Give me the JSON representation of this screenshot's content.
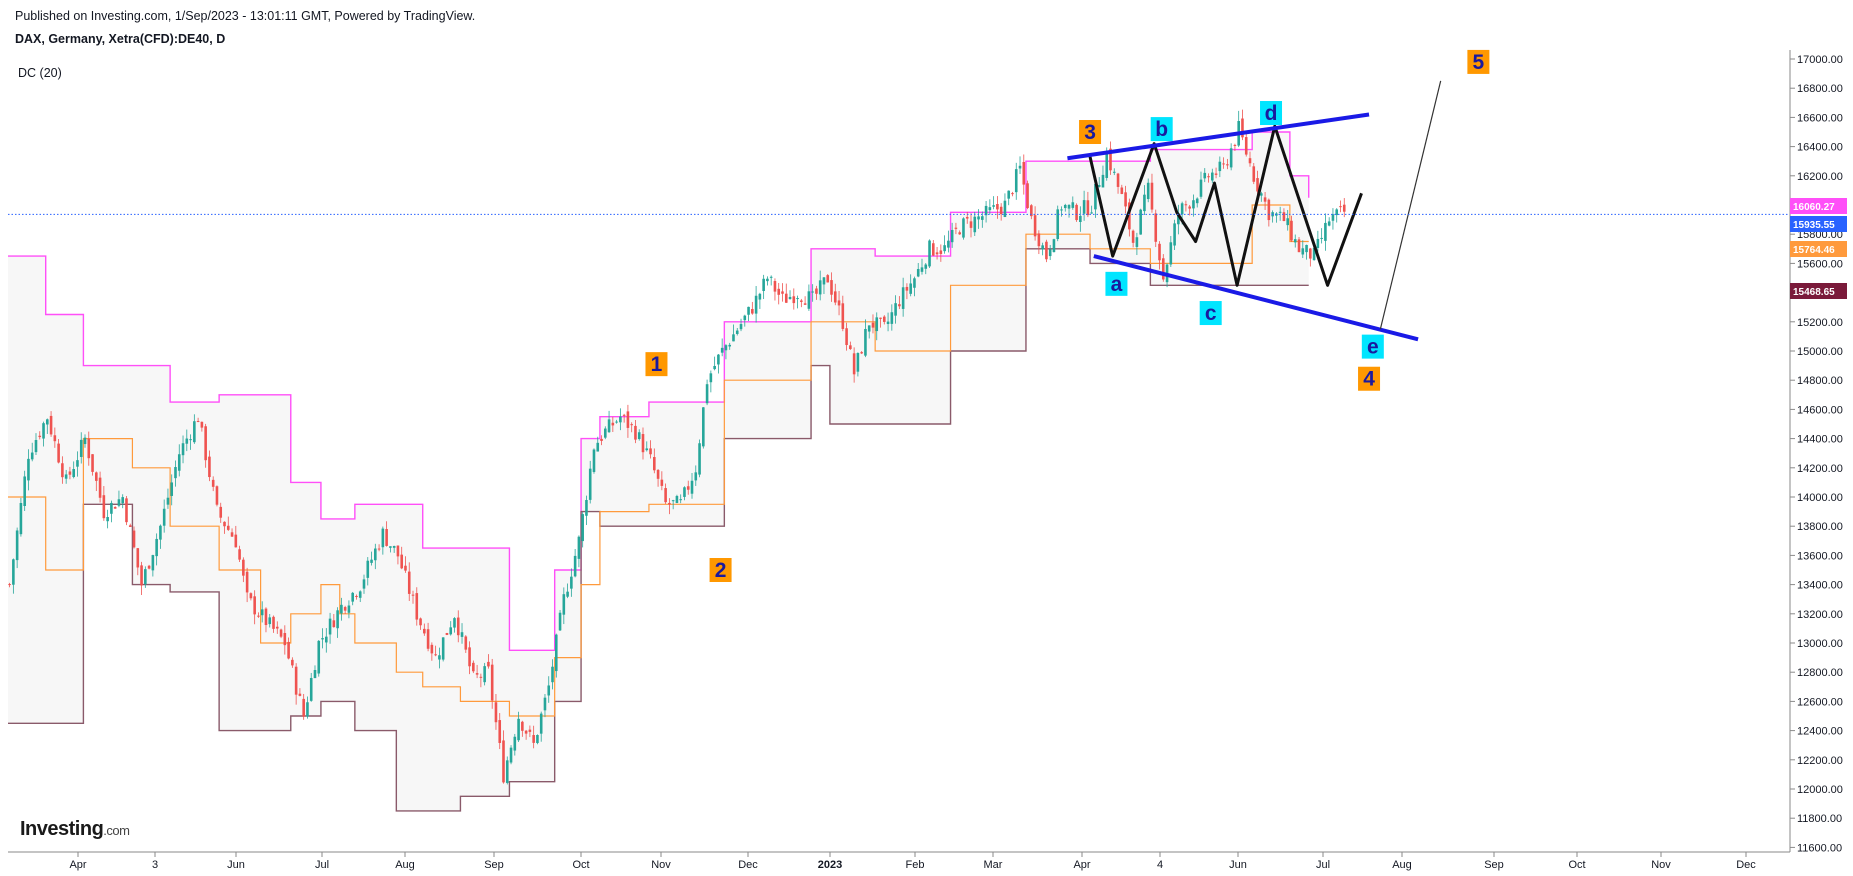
{
  "header": {
    "published": "Published on Investing.com, 1/Sep/2023 - 13:01:11 GMT, Powered by TradingView.",
    "symbol": "DAX, Germany, Xetra(CFD):DE40, D",
    "indicator": "DC (20)"
  },
  "logo": {
    "brand": "Investing",
    "domain": ".com"
  },
  "colors": {
    "candle_up": "#26a69a",
    "candle_down": "#ef5350",
    "upper_band": "#ff4ff8",
    "basis": "#ff9a3c",
    "lower_band": "#8a5a6a",
    "trendline": "#1a1ae6",
    "wave_path": "#111111",
    "label_orange": "#ff9800",
    "label_cyan": "#00e5ff",
    "label_text": "#1a1a9e",
    "current_price_line": "#2962ff"
  },
  "chart_data": {
    "type": "candlestick",
    "title": "DAX, Germany, Xetra(CFD):DE40, D",
    "ylim": [
      11600,
      17100
    ],
    "y_ticks": [
      "17000.00",
      "16800.00",
      "16600.00",
      "16400.00",
      "16200.00",
      "16000.00",
      "15800.00",
      "15600.00",
      "15400.00",
      "15200.00",
      "15000.00",
      "14800.00",
      "14600.00",
      "14400.00",
      "14200.00",
      "14000.00",
      "13800.00",
      "13600.00",
      "13400.00",
      "13200.00",
      "13000.00",
      "12800.00",
      "12600.00",
      "12400.00",
      "12200.00",
      "12000.00",
      "11800.00",
      "11600.00"
    ],
    "x_ticks": [
      "Apr",
      "3",
      "Jun",
      "Jul",
      "Aug",
      "Sep",
      "Oct",
      "Nov",
      "Dec",
      "2023",
      "Feb",
      "Mar",
      "Apr",
      "4",
      "Jun",
      "Jul",
      "Aug",
      "Sep",
      "Oct",
      "Nov",
      "Dec"
    ],
    "price_tags": [
      {
        "label": "16060.27",
        "value": 16060.27,
        "color": "#ff4ff8"
      },
      {
        "label": "15935.55",
        "value": 15935.55,
        "color": "#2962ff"
      },
      {
        "label": "15764.46",
        "value": 15764.46,
        "color": "#ff9a3c"
      },
      {
        "label": "15468.65",
        "value": 15468.65,
        "color": "#7a1a3a"
      }
    ],
    "close_path": [
      [
        0,
        13400
      ],
      [
        5,
        14300
      ],
      [
        10,
        14550
      ],
      [
        15,
        14100
      ],
      [
        20,
        14400
      ],
      [
        25,
        13900
      ],
      [
        30,
        14000
      ],
      [
        35,
        13400
      ],
      [
        40,
        13800
      ],
      [
        45,
        14300
      ],
      [
        50,
        14550
      ],
      [
        55,
        13900
      ],
      [
        60,
        13700
      ],
      [
        63,
        13300
      ],
      [
        68,
        13150
      ],
      [
        73,
        13000
      ],
      [
        78,
        12500
      ],
      [
        82,
        13000
      ],
      [
        88,
        13250
      ],
      [
        93,
        13400
      ],
      [
        99,
        13750
      ],
      [
        103,
        13600
      ],
      [
        108,
        13200
      ],
      [
        113,
        12900
      ],
      [
        118,
        13200
      ],
      [
        123,
        12750
      ],
      [
        127,
        12800
      ],
      [
        131,
        12100
      ],
      [
        135,
        12500
      ],
      [
        139,
        12300
      ],
      [
        143,
        12700
      ],
      [
        147,
        13300
      ],
      [
        151,
        13700
      ],
      [
        155,
        14350
      ],
      [
        158,
        14450
      ],
      [
        162,
        14550
      ],
      [
        166,
        14450
      ],
      [
        170,
        14250
      ],
      [
        174,
        13950
      ],
      [
        178,
        13950
      ],
      [
        182,
        14200
      ],
      [
        185,
        14800
      ],
      [
        189,
        15000
      ],
      [
        193,
        15150
      ],
      [
        197,
        15300
      ],
      [
        201,
        15500
      ],
      [
        205,
        15350
      ],
      [
        209,
        15400
      ],
      [
        213,
        15350
      ],
      [
        217,
        15500
      ],
      [
        221,
        15200
      ],
      [
        224,
        14850
      ],
      [
        228,
        15200
      ],
      [
        232,
        15150
      ],
      [
        236,
        15350
      ],
      [
        240,
        15500
      ],
      [
        244,
        15700
      ],
      [
        248,
        15700
      ],
      [
        252,
        15850
      ],
      [
        256,
        15900
      ],
      [
        260,
        15950
      ],
      [
        264,
        16000
      ],
      [
        268,
        16250
      ],
      [
        271,
        15900
      ],
      [
        275,
        15650
      ],
      [
        279,
        16000
      ],
      [
        283,
        15950
      ],
      [
        287,
        16000
      ],
      [
        291,
        16350
      ],
      [
        295,
        16050
      ],
      [
        298,
        15750
      ],
      [
        302,
        16100
      ],
      [
        306,
        15500
      ],
      [
        310,
        15950
      ],
      [
        314,
        16050
      ],
      [
        318,
        16200
      ],
      [
        322,
        16250
      ],
      [
        326,
        16520
      ],
      [
        330,
        16200
      ],
      [
        334,
        15950
      ],
      [
        338,
        15900
      ],
      [
        342,
        15700
      ],
      [
        346,
        15650
      ],
      [
        350,
        15900
      ],
      [
        354,
        15950
      ]
    ],
    "donchian": {
      "upper": [
        [
          0,
          15650
        ],
        [
          10,
          15250
        ],
        [
          20,
          14900
        ],
        [
          33,
          14900
        ],
        [
          43,
          14650
        ],
        [
          56,
          14700
        ],
        [
          67,
          14700
        ],
        [
          75,
          14100
        ],
        [
          83,
          13850
        ],
        [
          88,
          13850
        ],
        [
          92,
          13950
        ],
        [
          103,
          13950
        ],
        [
          110,
          13650
        ],
        [
          120,
          13650
        ],
        [
          133,
          12950
        ],
        [
          137,
          12950
        ],
        [
          145,
          13500
        ],
        [
          152,
          14400
        ],
        [
          157,
          14550
        ],
        [
          170,
          14650
        ],
        [
          190,
          15200
        ],
        [
          213,
          15700
        ],
        [
          218,
          15700
        ],
        [
          230,
          15650
        ],
        [
          250,
          15950
        ],
        [
          270,
          16300
        ],
        [
          287,
          16300
        ],
        [
          303,
          16380
        ],
        [
          330,
          16500
        ],
        [
          340,
          16200
        ],
        [
          345,
          16050
        ]
      ],
      "basis": [
        [
          0,
          14000
        ],
        [
          10,
          13500
        ],
        [
          20,
          14400
        ],
        [
          33,
          14200
        ],
        [
          43,
          13800
        ],
        [
          56,
          13500
        ],
        [
          67,
          13000
        ],
        [
          75,
          13200
        ],
        [
          83,
          13400
        ],
        [
          88,
          13200
        ],
        [
          92,
          13000
        ],
        [
          103,
          12800
        ],
        [
          110,
          12700
        ],
        [
          120,
          12600
        ],
        [
          133,
          12500
        ],
        [
          137,
          12500
        ],
        [
          145,
          12900
        ],
        [
          152,
          13400
        ],
        [
          157,
          13900
        ],
        [
          170,
          13950
        ],
        [
          190,
          14800
        ],
        [
          213,
          15200
        ],
        [
          218,
          15200
        ],
        [
          230,
          15000
        ],
        [
          250,
          15450
        ],
        [
          270,
          15800
        ],
        [
          287,
          15700
        ],
        [
          303,
          15600
        ],
        [
          330,
          16000
        ],
        [
          340,
          15750
        ],
        [
          345,
          15750
        ]
      ],
      "lower": [
        [
          0,
          12450
        ],
        [
          10,
          12450
        ],
        [
          20,
          13950
        ],
        [
          33,
          13400
        ],
        [
          43,
          13350
        ],
        [
          56,
          12400
        ],
        [
          67,
          12400
        ],
        [
          75,
          12500
        ],
        [
          83,
          12600
        ],
        [
          88,
          12600
        ],
        [
          92,
          12400
        ],
        [
          103,
          11850
        ],
        [
          110,
          11850
        ],
        [
          120,
          11950
        ],
        [
          133,
          12050
        ],
        [
          137,
          12050
        ],
        [
          145,
          12600
        ],
        [
          152,
          13900
        ],
        [
          157,
          13800
        ],
        [
          170,
          13800
        ],
        [
          190,
          14400
        ],
        [
          213,
          14900
        ],
        [
          218,
          14500
        ],
        [
          230,
          14500
        ],
        [
          250,
          15000
        ],
        [
          270,
          15700
        ],
        [
          287,
          15600
        ],
        [
          303,
          15450
        ],
        [
          330,
          15450
        ],
        [
          345,
          15450
        ]
      ]
    },
    "wave_path": [
      [
        287,
        16330
      ],
      [
        293,
        15650
      ],
      [
        304,
        16420
      ],
      [
        310,
        15950
      ],
      [
        315,
        15750
      ],
      [
        320,
        16150
      ],
      [
        326,
        15450
      ],
      [
        336,
        16540
      ],
      [
        350,
        15450
      ],
      [
        359,
        16080
      ]
    ],
    "trendlines": [
      {
        "from": [
          281,
          16320
        ],
        "to": [
          361,
          16620
        ]
      },
      {
        "from": [
          288,
          15650
        ],
        "to": [
          374,
          15080
        ]
      },
      {
        "from": [
          364,
          15150
        ],
        "to": [
          380,
          16850
        ]
      }
    ],
    "labels": [
      {
        "text": "1",
        "x": 172,
        "y": 14910,
        "style": "orange"
      },
      {
        "text": "2",
        "x": 189,
        "y": 13500,
        "style": "orange"
      },
      {
        "text": "3",
        "x": 287,
        "y": 16500,
        "style": "orange"
      },
      {
        "text": "4",
        "x": 361,
        "y": 14810,
        "style": "orange"
      },
      {
        "text": "5",
        "x": 390,
        "y": 16980,
        "style": "orange"
      },
      {
        "text": "a",
        "x": 294,
        "y": 15460,
        "style": "cyan"
      },
      {
        "text": "b",
        "x": 306,
        "y": 16520,
        "style": "cyan"
      },
      {
        "text": "c",
        "x": 319,
        "y": 15260,
        "style": "cyan"
      },
      {
        "text": "d",
        "x": 335,
        "y": 16630,
        "style": "cyan"
      },
      {
        "text": "e",
        "x": 362,
        "y": 15030,
        "style": "cyan"
      }
    ],
    "current_price": 15935.55
  }
}
